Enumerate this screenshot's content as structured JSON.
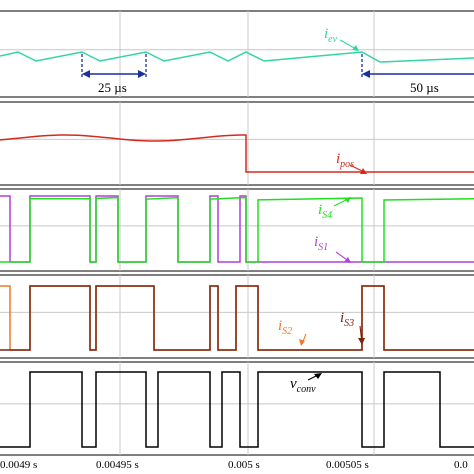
{
  "chart_data": {
    "type": "line",
    "x_unit": "s",
    "x_ticks": [
      "0.0049 s",
      "0.00495 s",
      "0.005 s",
      "0.00505 s",
      "0.0"
    ],
    "panels": [
      {
        "series": [
          {
            "name": "i",
            "sub": "ev",
            "color": "#33d69c"
          }
        ],
        "annotations": [
          {
            "text": "25 µs"
          },
          {
            "text": "50 µs"
          }
        ]
      },
      {
        "series": [
          {
            "name": "i",
            "sub": "pos",
            "color": "#d42a1e"
          }
        ]
      },
      {
        "series": [
          {
            "name": "i",
            "sub": "S4",
            "color": "#22dd22"
          },
          {
            "name": "i",
            "sub": "S1",
            "color": "#b040d8"
          }
        ]
      },
      {
        "series": [
          {
            "name": "i",
            "sub": "S3",
            "color": "#7a2410"
          },
          {
            "name": "i",
            "sub": "S2",
            "color": "#f07a26"
          }
        ]
      },
      {
        "series": [
          {
            "name": "v",
            "sub": "conv",
            "color": "#000000"
          }
        ]
      }
    ]
  }
}
